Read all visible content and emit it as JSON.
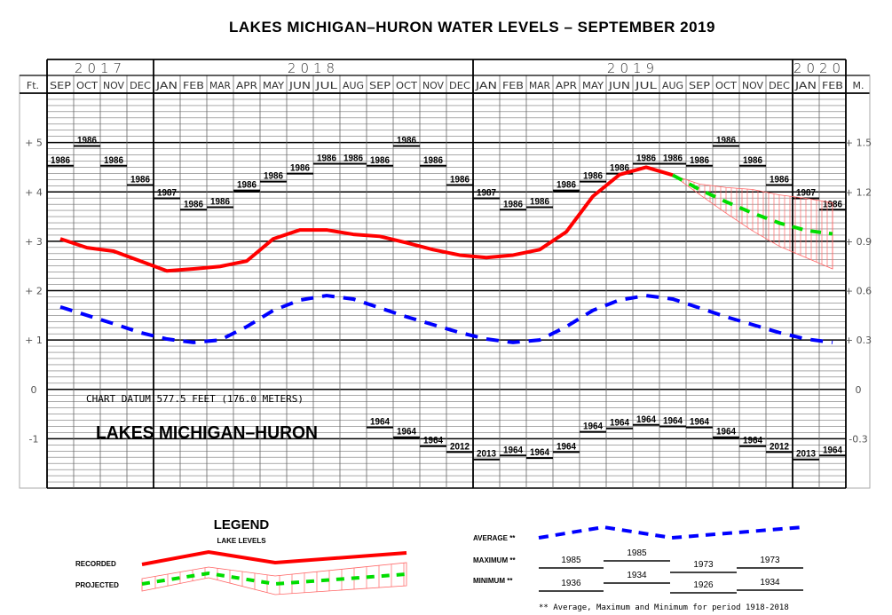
{
  "chart_data": {
    "type": "line",
    "title": "LAKES MICHIGAN–HURON  WATER LEVELS  –  SEPTEMBER 2019",
    "watermark_title": "LAKES MICHIGAN–HURON",
    "datum_note": "CHART DATUM   577.5 FEET (176.0 METERS)",
    "years": [
      {
        "label": "2017",
        "months": 4
      },
      {
        "label": "2018",
        "months": 12
      },
      {
        "label": "2019",
        "months": 12
      },
      {
        "label": "2020",
        "months": 2
      }
    ],
    "months": [
      "SEP",
      "OCT",
      "NOV",
      "DEC",
      "JAN",
      "FEB",
      "MAR",
      "APR",
      "MAY",
      "JUN",
      "JUL",
      "AUG",
      "SEP",
      "OCT",
      "NOV",
      "DEC",
      "JAN",
      "FEB",
      "MAR",
      "APR",
      "MAY",
      "JUN",
      "JUL",
      "AUG",
      "SEP",
      "OCT",
      "NOV",
      "DEC",
      "JAN",
      "FEB"
    ],
    "left_axis_label": "Ft.",
    "right_axis_label": "M.",
    "ylim_ft": [
      -2,
      6
    ],
    "left_ticks": [
      {
        "v": 5,
        "label": "+ 5"
      },
      {
        "v": 4,
        "label": "+ 4"
      },
      {
        "v": 3,
        "label": "+ 3"
      },
      {
        "v": 2,
        "label": "+ 2"
      },
      {
        "v": 1,
        "label": "+ 1"
      },
      {
        "v": 0,
        "label": "0"
      },
      {
        "v": -1,
        "label": "-1"
      }
    ],
    "right_ticks": [
      {
        "v": 5,
        "label": "+ 1.5"
      },
      {
        "v": 4,
        "label": "+ 1.2"
      },
      {
        "v": 3,
        "label": "+ 0.9"
      },
      {
        "v": 2,
        "label": "+ 0.6"
      },
      {
        "v": 1,
        "label": "+ 0.3"
      },
      {
        "v": 0,
        "label": "0"
      },
      {
        "v": -1,
        "label": "-0.3"
      }
    ],
    "series": [
      {
        "name": "RECORDED",
        "color": "#ff0000",
        "start_index": 0,
        "values": [
          3.05,
          2.87,
          2.8,
          2.6,
          2.4,
          2.44,
          2.49,
          2.6,
          3.05,
          3.23,
          3.23,
          3.14,
          3.1,
          2.97,
          2.83,
          2.72,
          2.67,
          2.72,
          2.83,
          3.19,
          3.91,
          4.35,
          4.5,
          4.34
        ]
      },
      {
        "name": "PROJECTED",
        "color": "#00dd00",
        "start_index": 23,
        "values": [
          4.34,
          4.05,
          3.8,
          3.57,
          3.37,
          3.22,
          3.15
        ],
        "range_upper": [
          4.34,
          4.16,
          4.09,
          4.05,
          3.94,
          3.87,
          3.78
        ],
        "range_lower": [
          4.34,
          3.95,
          3.57,
          3.21,
          2.9,
          2.67,
          2.44
        ]
      },
      {
        "name": "AVERAGE",
        "color": "#0000ff",
        "start_index": 0,
        "values": [
          1.67,
          1.5,
          1.33,
          1.15,
          1.02,
          0.95,
          1.0,
          1.27,
          1.6,
          1.81,
          1.9,
          1.83,
          1.65,
          1.47,
          1.31,
          1.15,
          1.02,
          0.95,
          1.0,
          1.27,
          1.6,
          1.81,
          1.9,
          1.83,
          1.65,
          1.47,
          1.31,
          1.15,
          1.02,
          0.95
        ]
      }
    ],
    "maximum": {
      "start_index": 0,
      "values": [
        4.53,
        4.93,
        4.53,
        4.14,
        3.87,
        3.64,
        3.69,
        4.03,
        4.21,
        4.37,
        4.57,
        4.57,
        4.53,
        4.93,
        4.53,
        4.14,
        3.87,
        3.64,
        3.69,
        4.03,
        4.21,
        4.37,
        4.57,
        4.57,
        4.53,
        4.93,
        4.53,
        4.14,
        3.87,
        3.64
      ],
      "years": [
        "1986",
        "1986",
        "1986",
        "1986",
        "1987",
        "1986",
        "1986",
        "1986",
        "1986",
        "1986",
        "1986",
        "1986",
        "1986",
        "1986",
        "1986",
        "1986",
        "1987",
        "1986",
        "1986",
        "1986",
        "1986",
        "1986",
        "1986",
        "1986",
        "1986",
        "1986",
        "1986",
        "1986",
        "1987",
        "1986"
      ]
    },
    "minimum": {
      "start_index": 12,
      "values": [
        -0.77,
        -0.97,
        -1.15,
        -1.27,
        -1.42,
        -1.34,
        -1.39,
        -1.27,
        -0.86,
        -0.79,
        -0.72,
        -0.75,
        -0.77,
        -0.97,
        -1.15,
        -1.27,
        -1.42,
        -1.34
      ],
      "years": [
        "1964",
        "1964",
        "1964",
        "2012",
        "2013",
        "1964",
        "1964",
        "1964",
        "1964",
        "1964",
        "1964",
        "1964",
        "1964",
        "1964",
        "1964",
        "2012",
        "2013",
        "1964"
      ]
    },
    "grid": true
  },
  "legend": {
    "title": "LEGEND",
    "subtitle": "LAKE LEVELS",
    "recorded_label": "RECORDED",
    "projected_label": "PROJECTED",
    "average_label": "AVERAGE **",
    "maximum_label": "MAXIMUM **",
    "minimum_label": "MINIMUM **",
    "max_years": [
      "1985",
      "1985",
      "1973",
      "1973"
    ],
    "min_years": [
      "1936",
      "1934",
      "1926",
      "1934"
    ],
    "footnote": "** Average, Maximum and Minimum for period 1918-2018"
  }
}
